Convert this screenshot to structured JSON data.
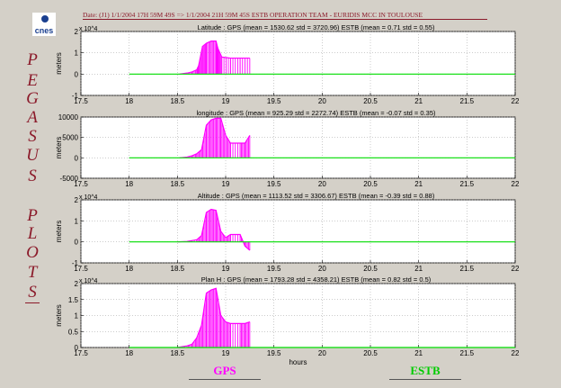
{
  "header": "Date: (J1) 1/1/2004 17H 59M 49S  =>  1/1/2004 21H 59M 45S   ESTB OPERATION TEAM - EURIDIS MCC IN TOULOUSE",
  "logo_text": "cnes",
  "side_title": [
    "P",
    "E",
    "G",
    "A",
    "S",
    "U",
    "S",
    "",
    "P",
    "L",
    "O",
    "T",
    "S"
  ],
  "legend": {
    "gps": "GPS",
    "estb": "ESTB"
  },
  "colors": {
    "gps": "#ff00ff",
    "estb": "#00dd00",
    "accent": "#8b1a2a"
  },
  "chart_data": [
    {
      "type": "line",
      "title": "Latitude : GPS (mean = 1530.62 std = 3720.96) ESTB (mean = 0.71 std = 0.55)",
      "ylabel": "meters",
      "xlabel": "",
      "exponent": "x 10^4",
      "xlim": [
        17.5,
        22
      ],
      "ylim": [
        -1,
        2
      ],
      "xticks": [
        17.5,
        18,
        18.5,
        19,
        19.5,
        20,
        20.5,
        21,
        21.5,
        22
      ],
      "yticks": [
        "-1",
        "0",
        "1",
        "2"
      ],
      "yvals": [
        -1,
        0,
        1,
        2
      ],
      "series": [
        {
          "name": "GPS",
          "x": [
            18.52,
            18.6,
            18.65,
            18.7,
            18.72,
            18.76,
            18.8,
            18.85,
            18.9,
            18.92,
            18.96,
            19.05,
            19.15,
            19.25
          ],
          "y": [
            0,
            0.05,
            0.1,
            0.2,
            0.4,
            1.3,
            1.45,
            1.55,
            1.55,
            1.2,
            0.8,
            0.75,
            0.75,
            0.75
          ]
        },
        {
          "name": "ESTB",
          "x": [
            18,
            22
          ],
          "y": [
            0,
            0
          ]
        }
      ]
    },
    {
      "type": "line",
      "title": "longitude : GPS (mean = 925.29 std = 2272.74) ESTB (mean = -0.07 std = 0.35)",
      "ylabel": "meters",
      "xlabel": "",
      "exponent": "",
      "xlim": [
        17.5,
        22
      ],
      "ylim": [
        -5000,
        10000
      ],
      "xticks": [
        17.5,
        18,
        18.5,
        19,
        19.5,
        20,
        20.5,
        21,
        21.5,
        22
      ],
      "yticks": [
        "-5000",
        "0",
        "5000",
        "10000"
      ],
      "yvals": [
        -5000,
        0,
        5000,
        10000
      ],
      "series": [
        {
          "name": "GPS",
          "x": [
            18.52,
            18.6,
            18.65,
            18.7,
            18.75,
            18.8,
            18.85,
            18.9,
            18.95,
            19.0,
            19.05,
            19.15,
            19.2,
            19.25
          ],
          "y": [
            0,
            200,
            500,
            1000,
            2000,
            8000,
            9300,
            9700,
            9700,
            5500,
            3600,
            3600,
            3600,
            5500
          ]
        },
        {
          "name": "ESTB",
          "x": [
            18,
            22
          ],
          "y": [
            0,
            0
          ]
        }
      ]
    },
    {
      "type": "line",
      "title": "Altitude : GPS (mean = 1113.52 std = 3306.67) ESTB (mean = -0.39 std = 0.88)",
      "ylabel": "meters",
      "xlabel": "",
      "exponent": "x 10^4",
      "xlim": [
        17.5,
        22
      ],
      "ylim": [
        -1,
        2
      ],
      "xticks": [
        17.5,
        18,
        18.5,
        19,
        19.5,
        20,
        20.5,
        21,
        21.5,
        22
      ],
      "yticks": [
        "-1",
        "0",
        "1",
        "2"
      ],
      "yvals": [
        -1,
        0,
        1,
        2
      ],
      "series": [
        {
          "name": "GPS",
          "x": [
            18.5,
            18.6,
            18.7,
            18.75,
            18.8,
            18.85,
            18.9,
            18.95,
            19.0,
            19.05,
            19.15,
            19.2,
            19.25
          ],
          "y": [
            0,
            0.02,
            0.1,
            0.3,
            1.4,
            1.55,
            1.5,
            0.5,
            0.2,
            0.35,
            0.35,
            -0.2,
            -0.4
          ]
        },
        {
          "name": "ESTB",
          "x": [
            18,
            22
          ],
          "y": [
            0,
            0
          ]
        }
      ]
    },
    {
      "type": "line",
      "title": "Plan H : GPS (mean = 1793.28 std = 4358.21) ESTB (mean = 0.82 std = 0.5)",
      "ylabel": "meters",
      "xlabel": "hours",
      "exponent": "x 10^4",
      "xlim": [
        17.5,
        22
      ],
      "ylim": [
        0,
        2
      ],
      "xticks": [
        17.5,
        18,
        18.5,
        19,
        19.5,
        20,
        20.5,
        21,
        21.5,
        22
      ],
      "yticks": [
        "0",
        "0.5",
        "1",
        "1.5",
        "2"
      ],
      "yvals": [
        0,
        0.5,
        1,
        1.5,
        2
      ],
      "series": [
        {
          "name": "GPS",
          "x": [
            18.5,
            18.6,
            18.65,
            18.7,
            18.75,
            18.8,
            18.85,
            18.9,
            18.95,
            19.0,
            19.05,
            19.15,
            19.2,
            19.25
          ],
          "y": [
            0,
            0.05,
            0.1,
            0.3,
            0.7,
            1.7,
            1.8,
            1.85,
            1.0,
            0.8,
            0.75,
            0.75,
            0.75,
            0.8
          ]
        },
        {
          "name": "ESTB",
          "x": [
            18,
            22
          ],
          "y": [
            0,
            0
          ]
        }
      ]
    }
  ]
}
